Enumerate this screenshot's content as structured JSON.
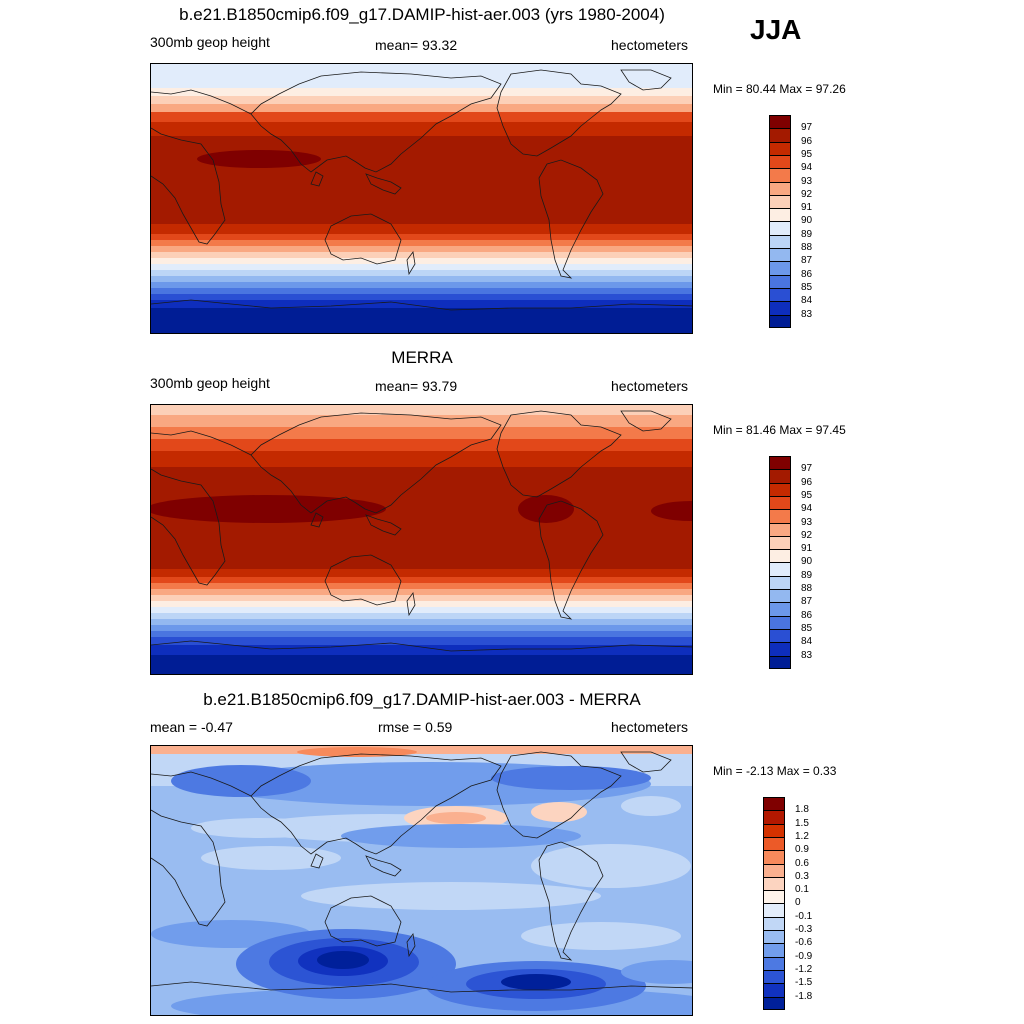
{
  "season": "JJA",
  "panels": [
    {
      "title": "b.e21.B1850cmip6.f09_g17.DAMIP-hist-aer.003 (yrs 1980-2004)",
      "left_label": "300mb geop height",
      "center_label": "mean=  93.32",
      "right_label": "hectometers",
      "minmax": "Min =  80.44 Max =  97.26",
      "colorbar_labels": [
        "97",
        "96",
        "95",
        "94",
        "93",
        "92",
        "91",
        "90",
        "89",
        "88",
        "87",
        "86",
        "85",
        "84",
        "83"
      ]
    },
    {
      "title": "MERRA",
      "left_label": "300mb geop height",
      "center_label": "mean=  93.79",
      "right_label": "hectometers",
      "minmax": "Min =  81.46 Max =  97.45",
      "colorbar_labels": [
        "97",
        "96",
        "95",
        "94",
        "93",
        "92",
        "91",
        "90",
        "89",
        "88",
        "87",
        "86",
        "85",
        "84",
        "83"
      ]
    },
    {
      "title": "b.e21.B1850cmip6.f09_g17.DAMIP-hist-aer.003 - MERRA",
      "left_label": "mean =  -0.47",
      "center_label": "rmse =   0.59",
      "right_label": "hectometers",
      "minmax": "Min =  -2.13 Max =   0.33",
      "colorbar_labels": [
        "1.8",
        "1.5",
        "1.2",
        "0.9",
        "0.6",
        "0.3",
        "0.1",
        "0",
        "-0.1",
        "-0.3",
        "-0.6",
        "-0.9",
        "-1.2",
        "-1.5",
        "-1.8"
      ]
    }
  ],
  "colors": {
    "field_scale": [
      "#7f0000",
      "#a31a00",
      "#c42a00",
      "#e2481a",
      "#f37a4a",
      "#f9a882",
      "#fcd0b8",
      "#fdeee3",
      "#e1ecfb",
      "#bcd5f6",
      "#93b8f0",
      "#6c98ea",
      "#4a75e0",
      "#2a4fd3",
      "#0e2ebd",
      "#001d95",
      "#00007f"
    ],
    "diff_scale": [
      "#7f0000",
      "#b21800",
      "#d43200",
      "#ec5a28",
      "#f78a5c",
      "#fab08f",
      "#fcd4c0",
      "#fef3ea",
      "#e3edfb",
      "#c1d7f6",
      "#99bcf1",
      "#719dec",
      "#4d79e2",
      "#2c54d4",
      "#1132bf",
      "#00209a",
      "#00007f"
    ]
  }
}
